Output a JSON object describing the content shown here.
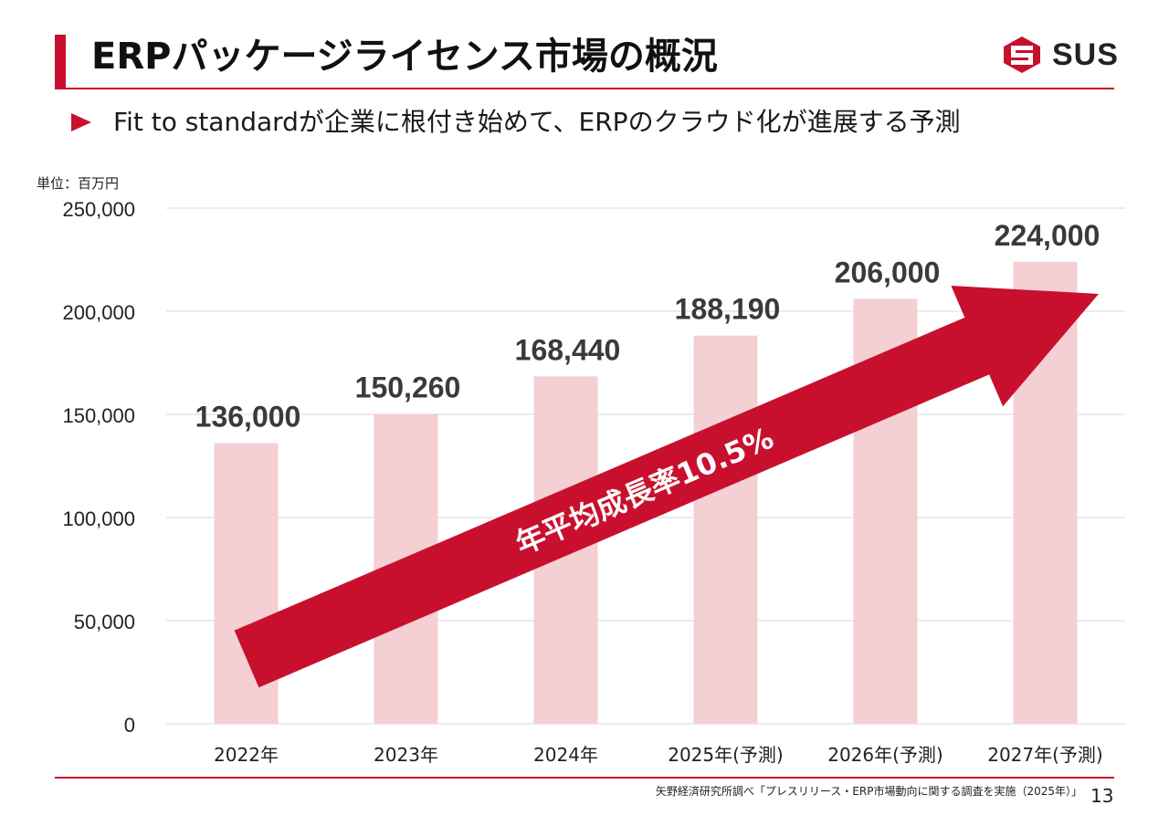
{
  "header": {
    "title": "ERPパッケージライセンス市場の概況",
    "logo_text": "SUS",
    "subtitle": "Fit to standardが企業に根付き始めて、ERPのクラウド化が進展する予測"
  },
  "unit_label": "単位：百万円",
  "chart_data": {
    "type": "bar",
    "title": "",
    "xlabel": "",
    "ylabel": "単位：百万円",
    "categories": [
      "2022年",
      "2023年",
      "2024年",
      "2025年(予測)",
      "2026年(予測)",
      "2027年(予測)"
    ],
    "values": [
      136000,
      150260,
      168440,
      188190,
      206000,
      224000
    ],
    "value_labels": [
      "136,000",
      "150,260",
      "168,440",
      "188,190",
      "206,000",
      "224,000"
    ],
    "ylim": [
      0,
      250000
    ],
    "yticks": [
      0,
      50000,
      100000,
      150000,
      200000,
      250000
    ],
    "ytick_labels": [
      "0",
      "50,000",
      "100,000",
      "150,000",
      "200,000",
      "250,000"
    ],
    "grid": true,
    "annotation": "年平均成長率10.5%",
    "colors": {
      "bar": "#f4cfd4",
      "arrow": "#c8102e",
      "grid": "#d9d9d9"
    }
  },
  "footer": {
    "source": "矢野経済研究所調べ「プレスリリース・ERP市場動向に関する調査を実施（2025年）」",
    "page_number": "13"
  }
}
